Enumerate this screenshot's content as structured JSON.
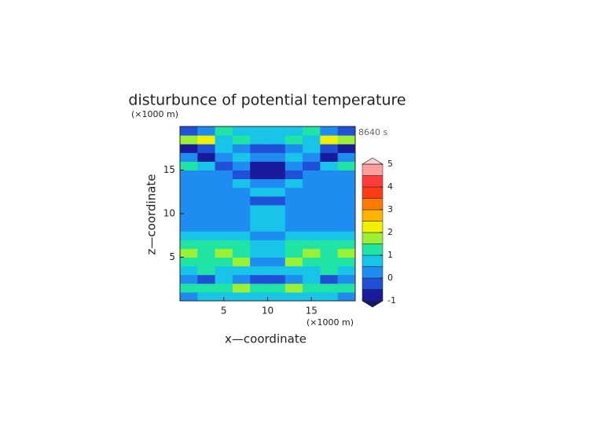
{
  "chart_data": {
    "type": "contour",
    "title": "disturbunce of potential temperature",
    "x_label": "x—coordinate",
    "y_label": "z—coordinate",
    "x_unit": "(×1000 m)",
    "y_unit": "(×1000 m)",
    "time_label": "8640 s",
    "xlim": [
      0,
      20
    ],
    "xticks": [
      5,
      10,
      15
    ],
    "ylim": [
      0,
      20
    ],
    "yticks": [
      5,
      10,
      15
    ],
    "x": [
      1,
      3,
      5,
      7,
      9,
      11,
      13,
      15,
      17,
      19
    ],
    "y": [
      0.5,
      1.5,
      2.5,
      3.5,
      4.5,
      5.5,
      6.5,
      7.5,
      8.5,
      9.5,
      10.5,
      11.5,
      12.5,
      13.5,
      14.5,
      15.5,
      16.5,
      17.5,
      18.5,
      19.5
    ],
    "z": [
      [
        0.2,
        0.6,
        0.6,
        0.6,
        0.6,
        0.6,
        0.6,
        0.6,
        0.6,
        0.2
      ],
      [
        1.2,
        1.2,
        1.2,
        1.7,
        1.2,
        1.2,
        1.7,
        1.2,
        1.2,
        1.2
      ],
      [
        0.2,
        -0.3,
        0.6,
        0.2,
        -0.3,
        -0.3,
        0.2,
        0.6,
        -0.3,
        0.2
      ],
      [
        0.7,
        1.2,
        0.7,
        0.7,
        0.7,
        0.7,
        0.7,
        0.7,
        1.2,
        0.7
      ],
      [
        1.2,
        1.2,
        1.2,
        1.7,
        0.3,
        0.3,
        1.7,
        1.2,
        1.2,
        1.2
      ],
      [
        1.7,
        1.2,
        1.7,
        1.2,
        0.6,
        0.6,
        1.2,
        1.7,
        1.2,
        1.7
      ],
      [
        1.2,
        1.2,
        1.2,
        1.2,
        0.6,
        0.6,
        1.2,
        1.2,
        1.2,
        1.2
      ],
      [
        0.7,
        0.7,
        0.7,
        0.7,
        0.3,
        0.3,
        0.7,
        0.7,
        0.7,
        0.7
      ],
      [
        0.2,
        0.2,
        0.2,
        0.2,
        0.6,
        0.6,
        0.2,
        0.2,
        0.2,
        0.2
      ],
      [
        0.2,
        0.2,
        0.2,
        0.2,
        0.6,
        0.6,
        0.2,
        0.2,
        0.2,
        0.2
      ],
      [
        0.2,
        0.2,
        0.2,
        0.2,
        0.6,
        0.6,
        0.2,
        0.2,
        0.2,
        0.2
      ],
      [
        0.2,
        0.2,
        0.2,
        0.2,
        -0.2,
        -0.2,
        0.2,
        0.2,
        0.2,
        0.2
      ],
      [
        0.2,
        0.2,
        0.2,
        0.2,
        0.6,
        0.6,
        0.2,
        0.2,
        0.2,
        0.2
      ],
      [
        0.2,
        0.2,
        0.2,
        0.6,
        0.3,
        0.3,
        0.6,
        0.2,
        0.2,
        0.2
      ],
      [
        0.3,
        0.3,
        0.3,
        -0.3,
        -0.7,
        -0.7,
        -0.3,
        0.3,
        0.3,
        0.3
      ],
      [
        1.0,
        0.6,
        -0.3,
        0.3,
        -0.7,
        -0.7,
        0.3,
        -0.3,
        0.6,
        1.0
      ],
      [
        0.3,
        -0.7,
        0.3,
        0.8,
        0.3,
        0.3,
        0.8,
        0.3,
        -0.7,
        0.3
      ],
      [
        -0.8,
        -0.3,
        0.8,
        0.3,
        -0.3,
        -0.3,
        0.3,
        0.8,
        -0.3,
        -0.8
      ],
      [
        1.5,
        2.0,
        0.8,
        1.2,
        0.8,
        0.8,
        1.2,
        0.8,
        2.0,
        1.5
      ],
      [
        -0.3,
        0.3,
        1.0,
        0.5,
        0.8,
        0.8,
        0.5,
        1.0,
        0.3,
        -0.3
      ]
    ],
    "levels": [
      -1,
      -0.5,
      0,
      0.5,
      1,
      1.5,
      2,
      2.5,
      3,
      3.5,
      4,
      4.5,
      5
    ],
    "colors": [
      "#1a1a9c",
      "#2050d8",
      "#1e8cf0",
      "#18c4e8",
      "#20e4a4",
      "#9cf034",
      "#f0f000",
      "#ffb400",
      "#ff7800",
      "#ff3c14",
      "#ff3c3c",
      "#ffa0a0"
    ],
    "under_color": "#14146e",
    "over_color": "#ffd0d0",
    "cbar_ticks": [
      -1,
      0,
      1,
      2,
      3,
      4,
      5
    ]
  }
}
